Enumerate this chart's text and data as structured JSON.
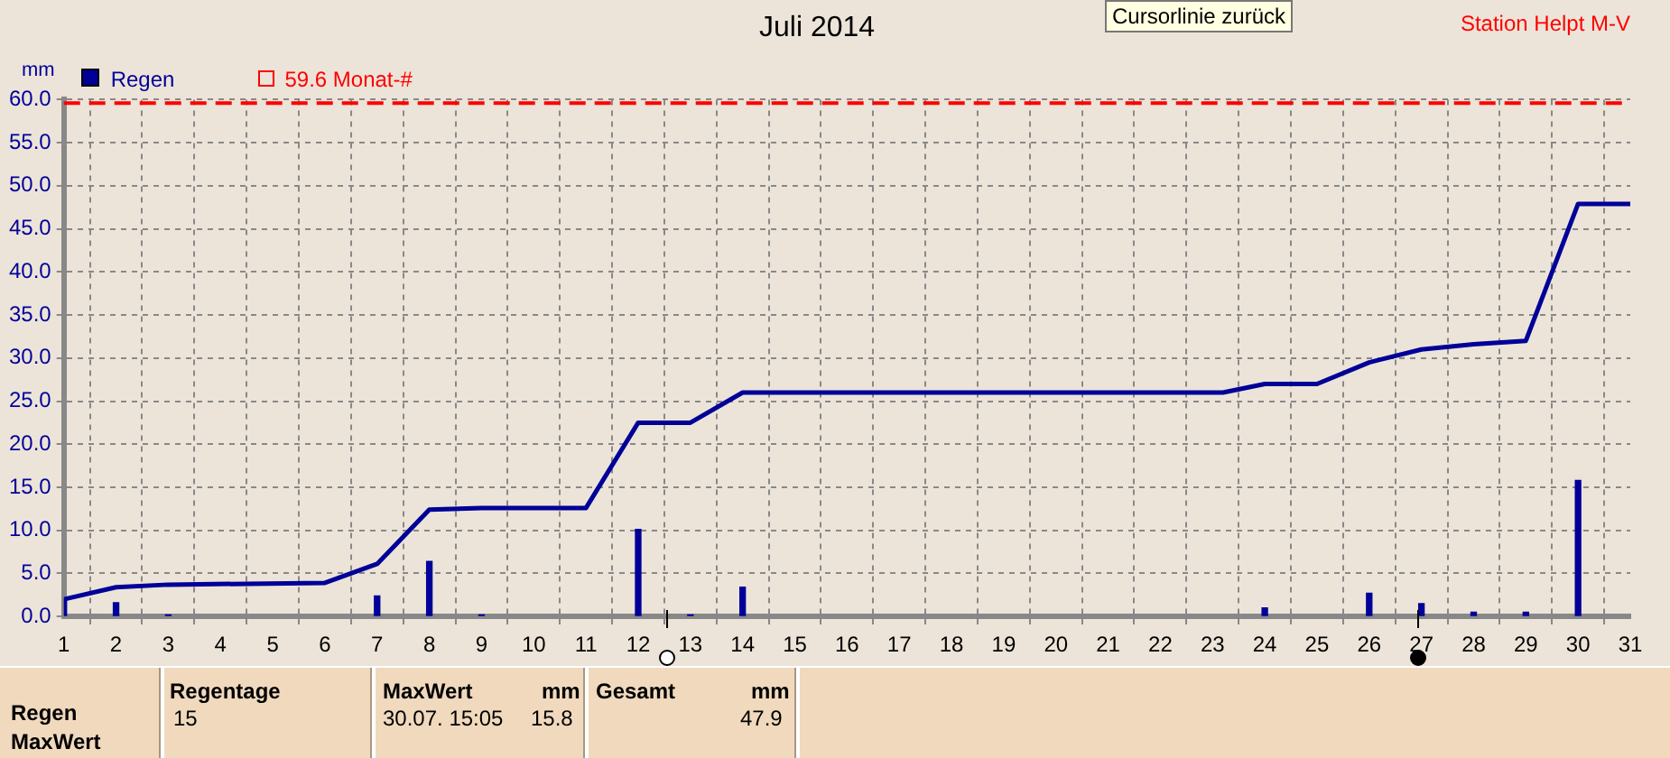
{
  "chart_data": {
    "type": "bar",
    "title": "Juli 2014",
    "ylabel": "mm",
    "xlim": [
      1,
      31
    ],
    "xticks": [
      1,
      2,
      3,
      4,
      5,
      6,
      7,
      8,
      9,
      10,
      11,
      12,
      13,
      14,
      15,
      16,
      17,
      18,
      19,
      20,
      21,
      22,
      23,
      24,
      25,
      26,
      27,
      28,
      29,
      30,
      31
    ],
    "ylim": [
      0,
      60
    ],
    "yticks": [
      {
        "value": 0,
        "label": "0.0"
      },
      {
        "value": 5,
        "label": "5.0"
      },
      {
        "value": 10,
        "label": "10.0"
      },
      {
        "value": 15,
        "label": "15.0"
      },
      {
        "value": 20,
        "label": "20.0"
      },
      {
        "value": 25,
        "label": "25.0"
      },
      {
        "value": 30,
        "label": "30.0"
      },
      {
        "value": 35,
        "label": "35.0"
      },
      {
        "value": 40,
        "label": "40.0"
      },
      {
        "value": 45,
        "label": "45.0"
      },
      {
        "value": 50,
        "label": "50.0"
      },
      {
        "value": 55,
        "label": "55.0"
      },
      {
        "value": 60,
        "label": "60.0"
      }
    ],
    "grid": true,
    "legend": "top left",
    "marker": "none",
    "series": [
      {
        "name": "Regen",
        "color": "#000099",
        "x": [
          1,
          2,
          3,
          7,
          8,
          9,
          12,
          13,
          14,
          24,
          26,
          27,
          28,
          29,
          30
        ],
        "values": [
          2.0,
          1.6,
          0.2,
          2.4,
          6.4,
          0.2,
          10.1,
          0.2,
          3.4,
          1.0,
          2.7,
          1.5,
          0.5,
          0.5,
          15.8
        ]
      },
      {
        "type": "line",
        "color": "#000099",
        "line_style": "solid",
        "x": [
          1,
          2,
          3,
          6,
          7,
          8,
          9,
          11,
          12,
          13,
          14,
          23.2,
          24,
          25,
          26,
          27,
          28,
          29,
          30,
          31
        ],
        "values": [
          2.0,
          3.4,
          3.7,
          3.9,
          6.1,
          12.4,
          12.6,
          12.6,
          22.5,
          22.5,
          26.0,
          26.0,
          27.0,
          27.0,
          29.5,
          31.0,
          31.6,
          32.0,
          47.9,
          47.9
        ]
      }
    ],
    "ref_lines": [
      {
        "axis": "y",
        "value": 59.6,
        "label": "59.6 Monat-#",
        "color": "#ff0000",
        "line_style": "dashed"
      }
    ],
    "annotations": [
      "Station Helpt M-V",
      "Cursorlinie zurück",
      "Regen",
      "MaxWert",
      "Regentage",
      "15",
      "MaxWert",
      "mm",
      "30.07.  15:05",
      "15.8",
      "Gesamt",
      "mm",
      "47.9"
    ]
  }
}
